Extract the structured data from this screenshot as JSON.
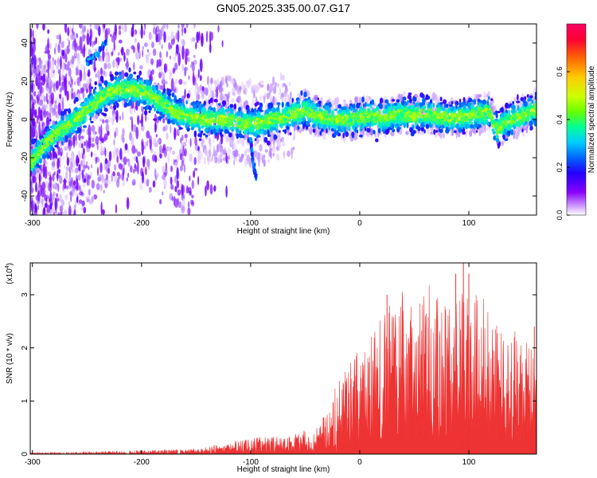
{
  "figure_title": "GN05.2025.335.00.07.G17",
  "chart_data": [
    {
      "type": "heatmap",
      "title": "GN05.2025.335.00.07.G17",
      "xlabel": "Height of straight line (km)",
      "ylabel": "Frequency (Hz)",
      "xlim": [
        -302,
        162
      ],
      "ylim": [
        -50,
        50
      ],
      "x_ticks": [
        -300,
        -200,
        -100,
        0,
        100
      ],
      "x_tick_labels": [
        "-300",
        "-200",
        "-100",
        "0",
        "100"
      ],
      "y_ticks": [
        -40,
        -20,
        0,
        20,
        40
      ],
      "y_tick_labels": [
        "-40",
        "-20",
        "0",
        "20",
        "40"
      ],
      "colorbar": {
        "label": "Normalized spectral amplitude",
        "range": [
          0,
          0.8
        ],
        "ticks": [
          0,
          0.2,
          0.4,
          0.6
        ],
        "tick_labels": [
          "0.0",
          "0.2",
          "0.4",
          "0.6"
        ],
        "colormap": "rainbow",
        "colors": [
          "#ffffff",
          "#e0c0ff",
          "#8800ff",
          "#2200ff",
          "#0066ff",
          "#00ccff",
          "#00ff99",
          "#66ff00",
          "#ccff00",
          "#ffcc00",
          "#ff6600",
          "#ff0033",
          "#ff0066"
        ]
      },
      "ridge_frequency": {
        "x": [
          -300,
          -290,
          -280,
          -270,
          -260,
          -250,
          -240,
          -230,
          -220,
          -210,
          -200,
          -190,
          -180,
          -170,
          -160,
          -150,
          -140,
          -130,
          -120,
          -110,
          -100,
          -90,
          -80,
          -70,
          -60,
          -50,
          -40,
          -30,
          -20,
          -10,
          0,
          10,
          20,
          30,
          40,
          50,
          60,
          70,
          80,
          90,
          100,
          110,
          120,
          125,
          130,
          140,
          150,
          160
        ],
        "y": [
          -22,
          -14,
          -8,
          -4,
          0,
          5,
          10,
          14,
          16,
          16,
          15,
          12,
          8,
          4,
          2,
          1,
          0,
          0,
          0,
          -2,
          -2,
          -2,
          0,
          1,
          3,
          5,
          2,
          1,
          0,
          0,
          1,
          2,
          1,
          2,
          3,
          2,
          3,
          2,
          1,
          1,
          2,
          3,
          4,
          -6,
          -3,
          0,
          2,
          5
        ]
      },
      "secondary_branch": {
        "x": [
          -250,
          -240,
          -232
        ],
        "y": [
          30,
          35,
          41
        ]
      },
      "dip_feature": {
        "x": [
          -100,
          -98,
          -95
        ],
        "y": [
          -10,
          -22,
          -31
        ]
      }
    },
    {
      "type": "area",
      "xlabel": "Height of straight line (km)",
      "ylabel": "SNR (10 * v/v)",
      "y_multiplier_label": "(x10",
      "y_multiplier_exp": "4",
      "y_multiplier_close": ")",
      "xlim": [
        -302,
        162
      ],
      "ylim": [
        0,
        3.6
      ],
      "x_ticks": [
        -300,
        -200,
        -100,
        0,
        100
      ],
      "x_tick_labels": [
        "-300",
        "-200",
        "-100",
        "0",
        "100"
      ],
      "y_ticks": [
        0,
        1,
        2,
        3
      ],
      "y_tick_labels": [
        "0",
        "1",
        "2",
        "3"
      ],
      "color": "#ee3333",
      "envelope": {
        "x": [
          -302,
          -250,
          -200,
          -150,
          -130,
          -100,
          -80,
          -60,
          -40,
          -30,
          -25,
          -20,
          -10,
          0,
          10,
          20,
          30,
          40,
          50,
          60,
          70,
          80,
          90,
          100,
          110,
          120,
          130,
          140,
          150,
          162
        ],
        "y": [
          0.03,
          0.05,
          0.07,
          0.1,
          0.18,
          0.3,
          0.35,
          0.4,
          0.5,
          0.8,
          1.2,
          1.4,
          1.7,
          2.0,
          2.2,
          2.6,
          3.0,
          3.2,
          3.0,
          3.3,
          3.1,
          3.0,
          3.3,
          3.0,
          3.1,
          2.7,
          2.3,
          2.4,
          2.1,
          2.3
        ]
      },
      "notable_peaks": [
        {
          "x": 25,
          "y": 3.0
        },
        {
          "x": 88,
          "y": 3.4
        },
        {
          "x": 95,
          "y": 3.6
        },
        {
          "x": 100,
          "y": 3.4
        },
        {
          "x": 160,
          "y": 2.4
        }
      ]
    }
  ]
}
